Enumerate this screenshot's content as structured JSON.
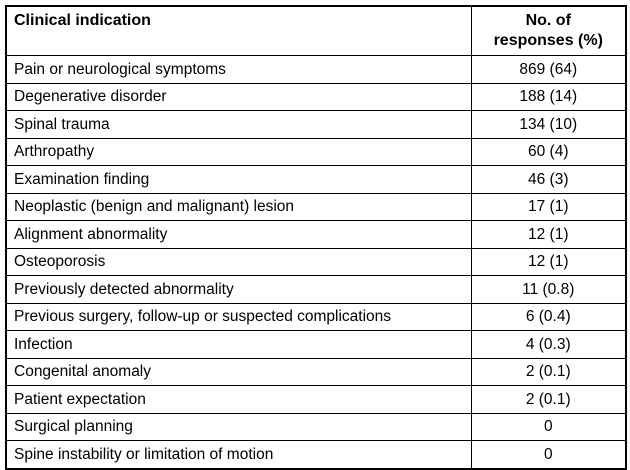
{
  "table": {
    "title": "Clinical indications table",
    "columns": {
      "indication_label": "Clinical indication",
      "responses_label": "No. of\nresponses (%)"
    },
    "rows": [
      {
        "indication": "Pain or neurological symptoms",
        "responses": "869 (64)"
      },
      {
        "indication": "Degenerative disorder",
        "responses": "188 (14)"
      },
      {
        "indication": "Spinal trauma",
        "responses": "134 (10)"
      },
      {
        "indication": "Arthropathy",
        "responses": "60 (4)"
      },
      {
        "indication": "Examination finding",
        "responses": "46 (3)"
      },
      {
        "indication": "Neoplastic (benign and malignant) lesion",
        "responses": "17 (1)"
      },
      {
        "indication": "Alignment abnormality",
        "responses": "12 (1)"
      },
      {
        "indication": "Osteoporosis",
        "responses": "12 (1)"
      },
      {
        "indication": "Previously detected abnormality",
        "responses": "11 (0.8)"
      },
      {
        "indication": "Previous surgery, follow-up or suspected complications",
        "responses": "6 (0.4)"
      },
      {
        "indication": "Infection",
        "responses": "4 (0.3)"
      },
      {
        "indication": "Congenital anomaly",
        "responses": "2 (0.1)"
      },
      {
        "indication": "Patient expectation",
        "responses": "2 (0.1)"
      },
      {
        "indication": "Surgical planning",
        "responses": "0"
      },
      {
        "indication": "Spine instability or limitation of motion",
        "responses": "0"
      }
    ],
    "colors": {
      "border": "#000000",
      "text": "#000000",
      "background": "#ffffff"
    }
  },
  "chart_data": {
    "type": "table",
    "title": "Clinical indication vs No. of responses (%)",
    "categories": [
      "Pain or neurological symptoms",
      "Degenerative disorder",
      "Spinal trauma",
      "Arthropathy",
      "Examination finding",
      "Neoplastic (benign and malignant) lesion",
      "Alignment abnormality",
      "Osteoporosis",
      "Previously detected abnormality",
      "Previous surgery, follow-up or suspected complications",
      "Infection",
      "Congenital anomaly",
      "Patient expectation",
      "Surgical planning",
      "Spine instability or limitation of motion"
    ],
    "values": [
      869,
      188,
      134,
      60,
      46,
      17,
      12,
      12,
      11,
      6,
      4,
      2,
      2,
      0,
      0
    ],
    "percentages": [
      64,
      14,
      10,
      4,
      3,
      1,
      1,
      1,
      0.8,
      0.4,
      0.3,
      0.1,
      0.1,
      0,
      0
    ]
  }
}
